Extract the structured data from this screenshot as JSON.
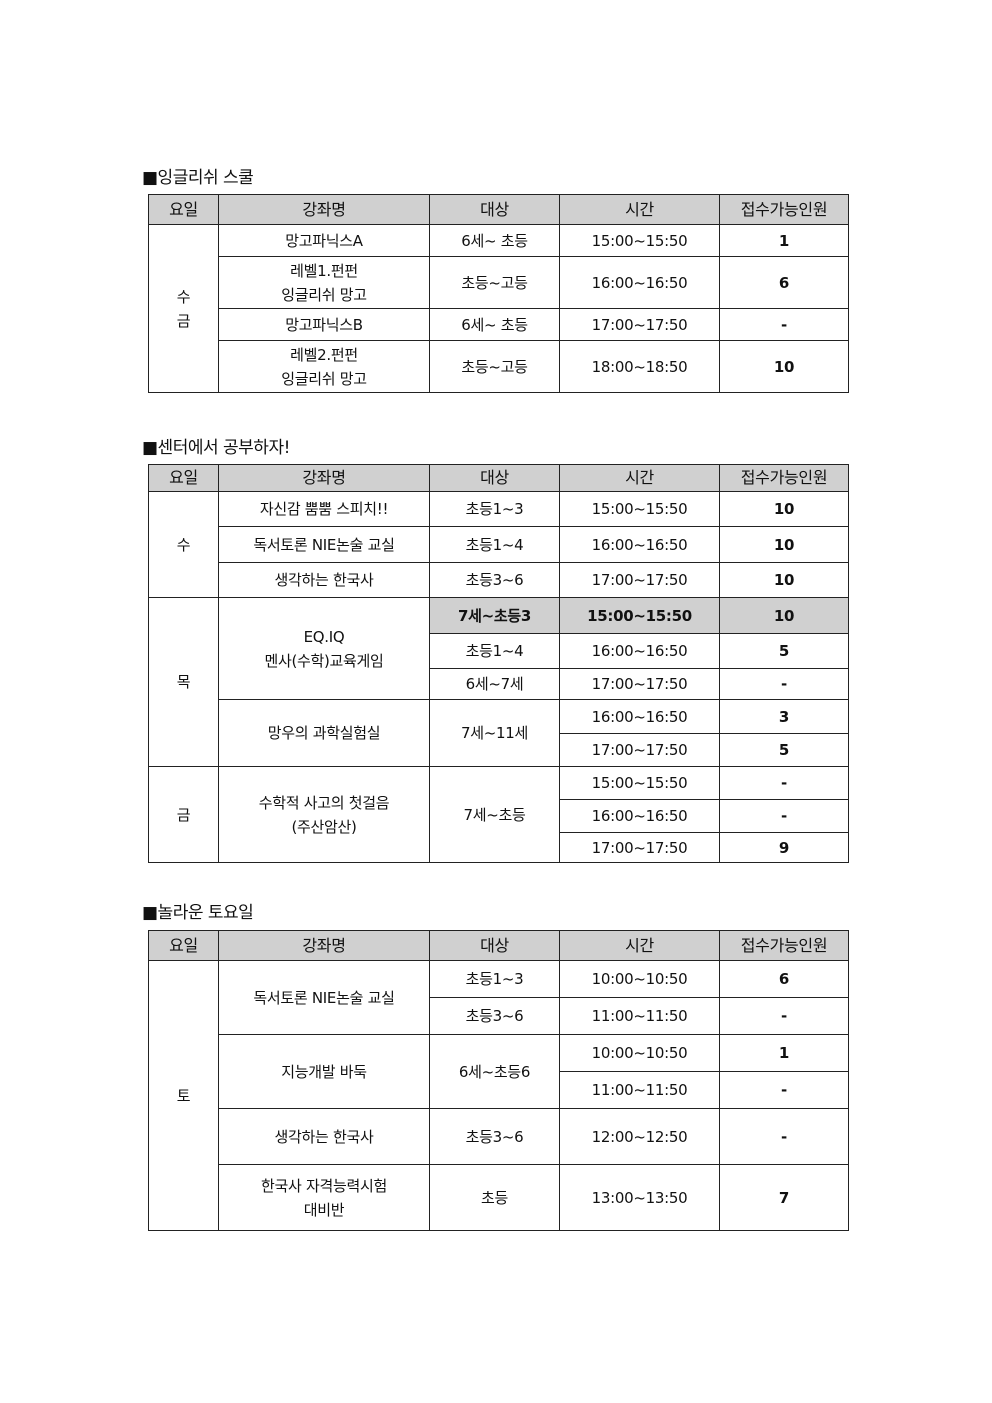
{
  "headers": [
    "요일",
    "강좌명",
    "대상",
    "시간",
    "접수가능인원"
  ],
  "sections": [
    {
      "title": "■잉글리쉬 스쿨",
      "days": [
        {
          "day": "수\n금",
          "courses": [
            {
              "name": "망고파닉스A",
              "targets": [
                {
                  "target": "6세~ 초등",
                  "sessions": [
                    {
                      "time": "15:00~15:50",
                      "seats": "1"
                    }
                  ]
                }
              ]
            },
            {
              "name": "레벨1.펀펀\n잉글리쉬 망고",
              "targets": [
                {
                  "target": "초등~고등",
                  "sessions": [
                    {
                      "time": "16:00~16:50",
                      "seats": "6"
                    }
                  ]
                }
              ]
            },
            {
              "name": "망고파닉스B",
              "targets": [
                {
                  "target": "6세~ 초등",
                  "sessions": [
                    {
                      "time": "17:00~17:50",
                      "seats": "-"
                    }
                  ]
                }
              ]
            },
            {
              "name": "레벨2.펀펀\n잉글리쉬 망고",
              "targets": [
                {
                  "target": "초등~고등",
                  "sessions": [
                    {
                      "time": "18:00~18:50",
                      "seats": "10"
                    }
                  ]
                }
              ]
            }
          ]
        }
      ]
    },
    {
      "title": "■센터에서 공부하자!",
      "days": [
        {
          "day": "수",
          "courses": [
            {
              "name": "자신감 뿜뿜 스피치!!",
              "targets": [
                {
                  "target": "초등1~3",
                  "sessions": [
                    {
                      "time": "15:00~15:50",
                      "seats": "10"
                    }
                  ]
                }
              ]
            },
            {
              "name": "독서토론 NIE논술 교실",
              "targets": [
                {
                  "target": "초등1~4",
                  "sessions": [
                    {
                      "time": "16:00~16:50",
                      "seats": "10"
                    }
                  ]
                }
              ]
            },
            {
              "name": "생각하는 한국사",
              "targets": [
                {
                  "target": "초등3~6",
                  "sessions": [
                    {
                      "time": "17:00~17:50",
                      "seats": "10"
                    }
                  ]
                }
              ]
            }
          ]
        },
        {
          "day": "목",
          "courses": [
            {
              "name": "EQ.IQ\n멘사(수학)교육게임",
              "targets": [
                {
                  "target": "7세~초등3",
                  "highlighted": true,
                  "sessions": [
                    {
                      "time": "15:00~15:50",
                      "seats": "10"
                    }
                  ]
                },
                {
                  "target": "초등1~4",
                  "sessions": [
                    {
                      "time": "16:00~16:50",
                      "seats": "5"
                    }
                  ]
                },
                {
                  "target": "6세~7세",
                  "sessions": [
                    {
                      "time": "17:00~17:50",
                      "seats": "-"
                    }
                  ]
                }
              ]
            },
            {
              "name": "망우의 과학실험실",
              "targets": [
                {
                  "target": "7세~11세",
                  "sessions": [
                    {
                      "time": "16:00~16:50",
                      "seats": "3"
                    },
                    {
                      "time": "17:00~17:50",
                      "seats": "5"
                    }
                  ]
                }
              ]
            }
          ]
        },
        {
          "day": "금",
          "courses": [
            {
              "name": "수학적 사고의 첫걸음\n(주산암산)",
              "targets": [
                {
                  "target": "7세~초등",
                  "sessions": [
                    {
                      "time": "15:00~15:50",
                      "seats": "-"
                    },
                    {
                      "time": "16:00~16:50",
                      "seats": "-"
                    },
                    {
                      "time": "17:00~17:50",
                      "seats": "9"
                    }
                  ]
                }
              ]
            }
          ]
        }
      ]
    },
    {
      "title": "■놀라운 토요일",
      "days": [
        {
          "day": "토",
          "courses": [
            {
              "name": "독서토론 NIE논술 교실",
              "targets": [
                {
                  "target": "초등1~3",
                  "sessions": [
                    {
                      "time": "10:00~10:50",
                      "seats": "6"
                    }
                  ]
                },
                {
                  "target": "초등3~6",
                  "sessions": [
                    {
                      "time": "11:00~11:50",
                      "seats": "-"
                    }
                  ]
                }
              ]
            },
            {
              "name": "지능개발 바둑",
              "targets": [
                {
                  "target": "6세~초등6",
                  "sessions": [
                    {
                      "time": "10:00~10:50",
                      "seats": "1"
                    },
                    {
                      "time": "11:00~11:50",
                      "seats": "-"
                    }
                  ]
                }
              ]
            },
            {
              "name": "생각하는 한국사",
              "targets": [
                {
                  "target": "초등3~6",
                  "sessions": [
                    {
                      "time": "12:00~12:50",
                      "seats": "-"
                    }
                  ]
                }
              ]
            },
            {
              "name": "한국사 자격능력시험\n대비반",
              "targets": [
                {
                  "target": "초등",
                  "sessions": [
                    {
                      "time": "13:00~13:50",
                      "seats": "7"
                    }
                  ]
                }
              ]
            }
          ]
        }
      ]
    }
  ]
}
